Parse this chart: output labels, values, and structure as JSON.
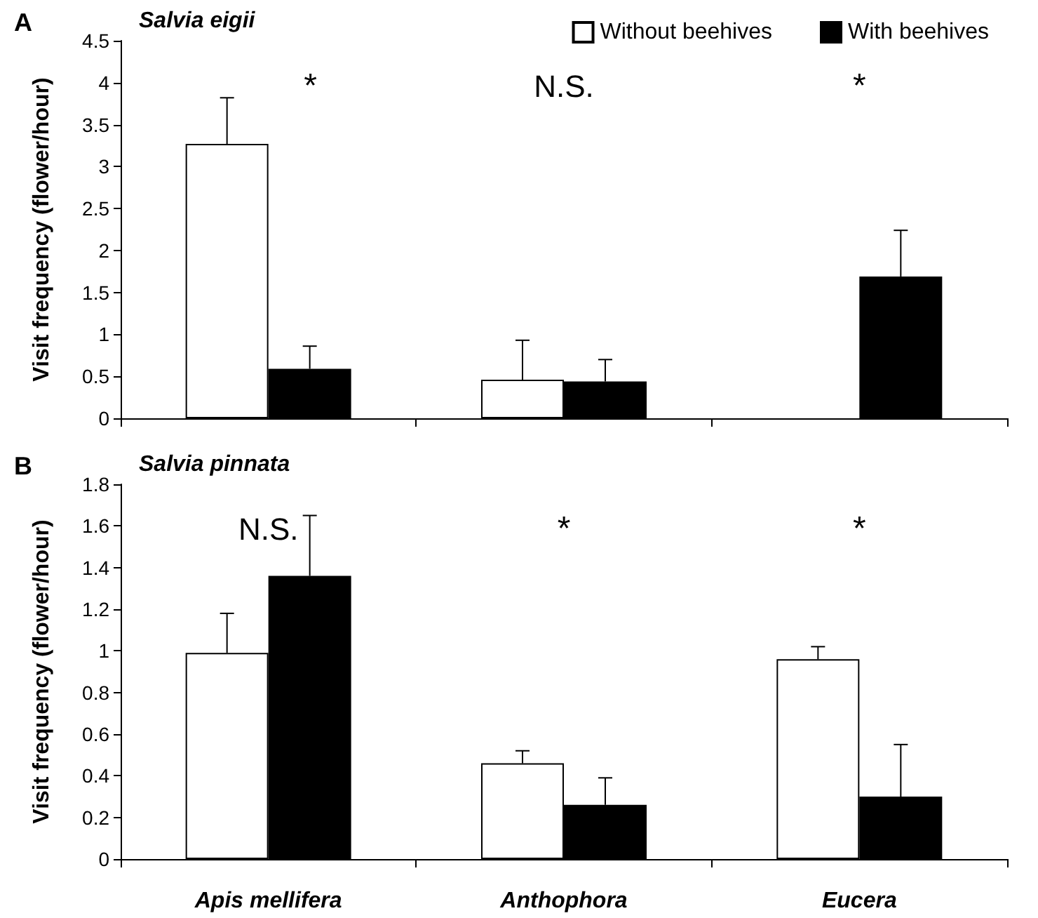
{
  "chart_data": [
    {
      "type": "bar",
      "title": "Salvia eigii",
      "ylabel": "Visit frequency (flower/hour)",
      "categories": [
        null,
        null,
        null
      ],
      "series": [
        {
          "name": "Without beehives",
          "color": "#ffffff",
          "values": [
            3.27,
            0.46,
            0
          ],
          "errors": [
            [
              3.27,
              3.82
            ],
            [
              0.46,
              0.93
            ],
            null
          ]
        },
        {
          "name": "With beehives",
          "color": "#000000",
          "values": [
            0.59,
            0.44,
            1.69
          ],
          "errors": [
            [
              0.59,
              0.86
            ],
            [
              0.44,
              0.7
            ],
            [
              1.69,
              2.24
            ]
          ]
        }
      ],
      "ylim": [
        0,
        4.5
      ],
      "yticks": [
        0,
        0.5,
        1,
        1.5,
        2,
        2.5,
        3,
        3.5,
        4,
        4.5
      ],
      "grid": false,
      "legend": "top right",
      "tick_labels": "y",
      "annotations": [
        "A",
        "*",
        "N.S.",
        "*"
      ]
    },
    {
      "type": "bar",
      "title": "Salvia pinnata",
      "ylabel": "Visit frequency (flower/hour)",
      "categories": [
        "Apis mellifera",
        "Anthophora",
        "Eucera"
      ],
      "series": [
        {
          "color": "#ffffff",
          "values": [
            0.99,
            0.46,
            0.96
          ],
          "errors": [
            [
              0.99,
              1.18
            ],
            [
              0.46,
              0.52
            ],
            [
              0.96,
              1.02
            ]
          ]
        },
        {
          "color": "#000000",
          "values": [
            1.36,
            0.26,
            0.3
          ],
          "errors": [
            [
              1.36,
              1.65
            ],
            [
              0.26,
              0.39
            ],
            [
              0.3,
              0.55
            ]
          ]
        }
      ],
      "ylim": [
        0,
        1.8
      ],
      "yticks": [
        0,
        0.2,
        0.4,
        0.6,
        0.8,
        1,
        1.2,
        1.4,
        1.6,
        1.8
      ],
      "grid": false,
      "legend": false,
      "annotations": [
        "B",
        "N.S.",
        "*",
        "*"
      ]
    }
  ]
}
